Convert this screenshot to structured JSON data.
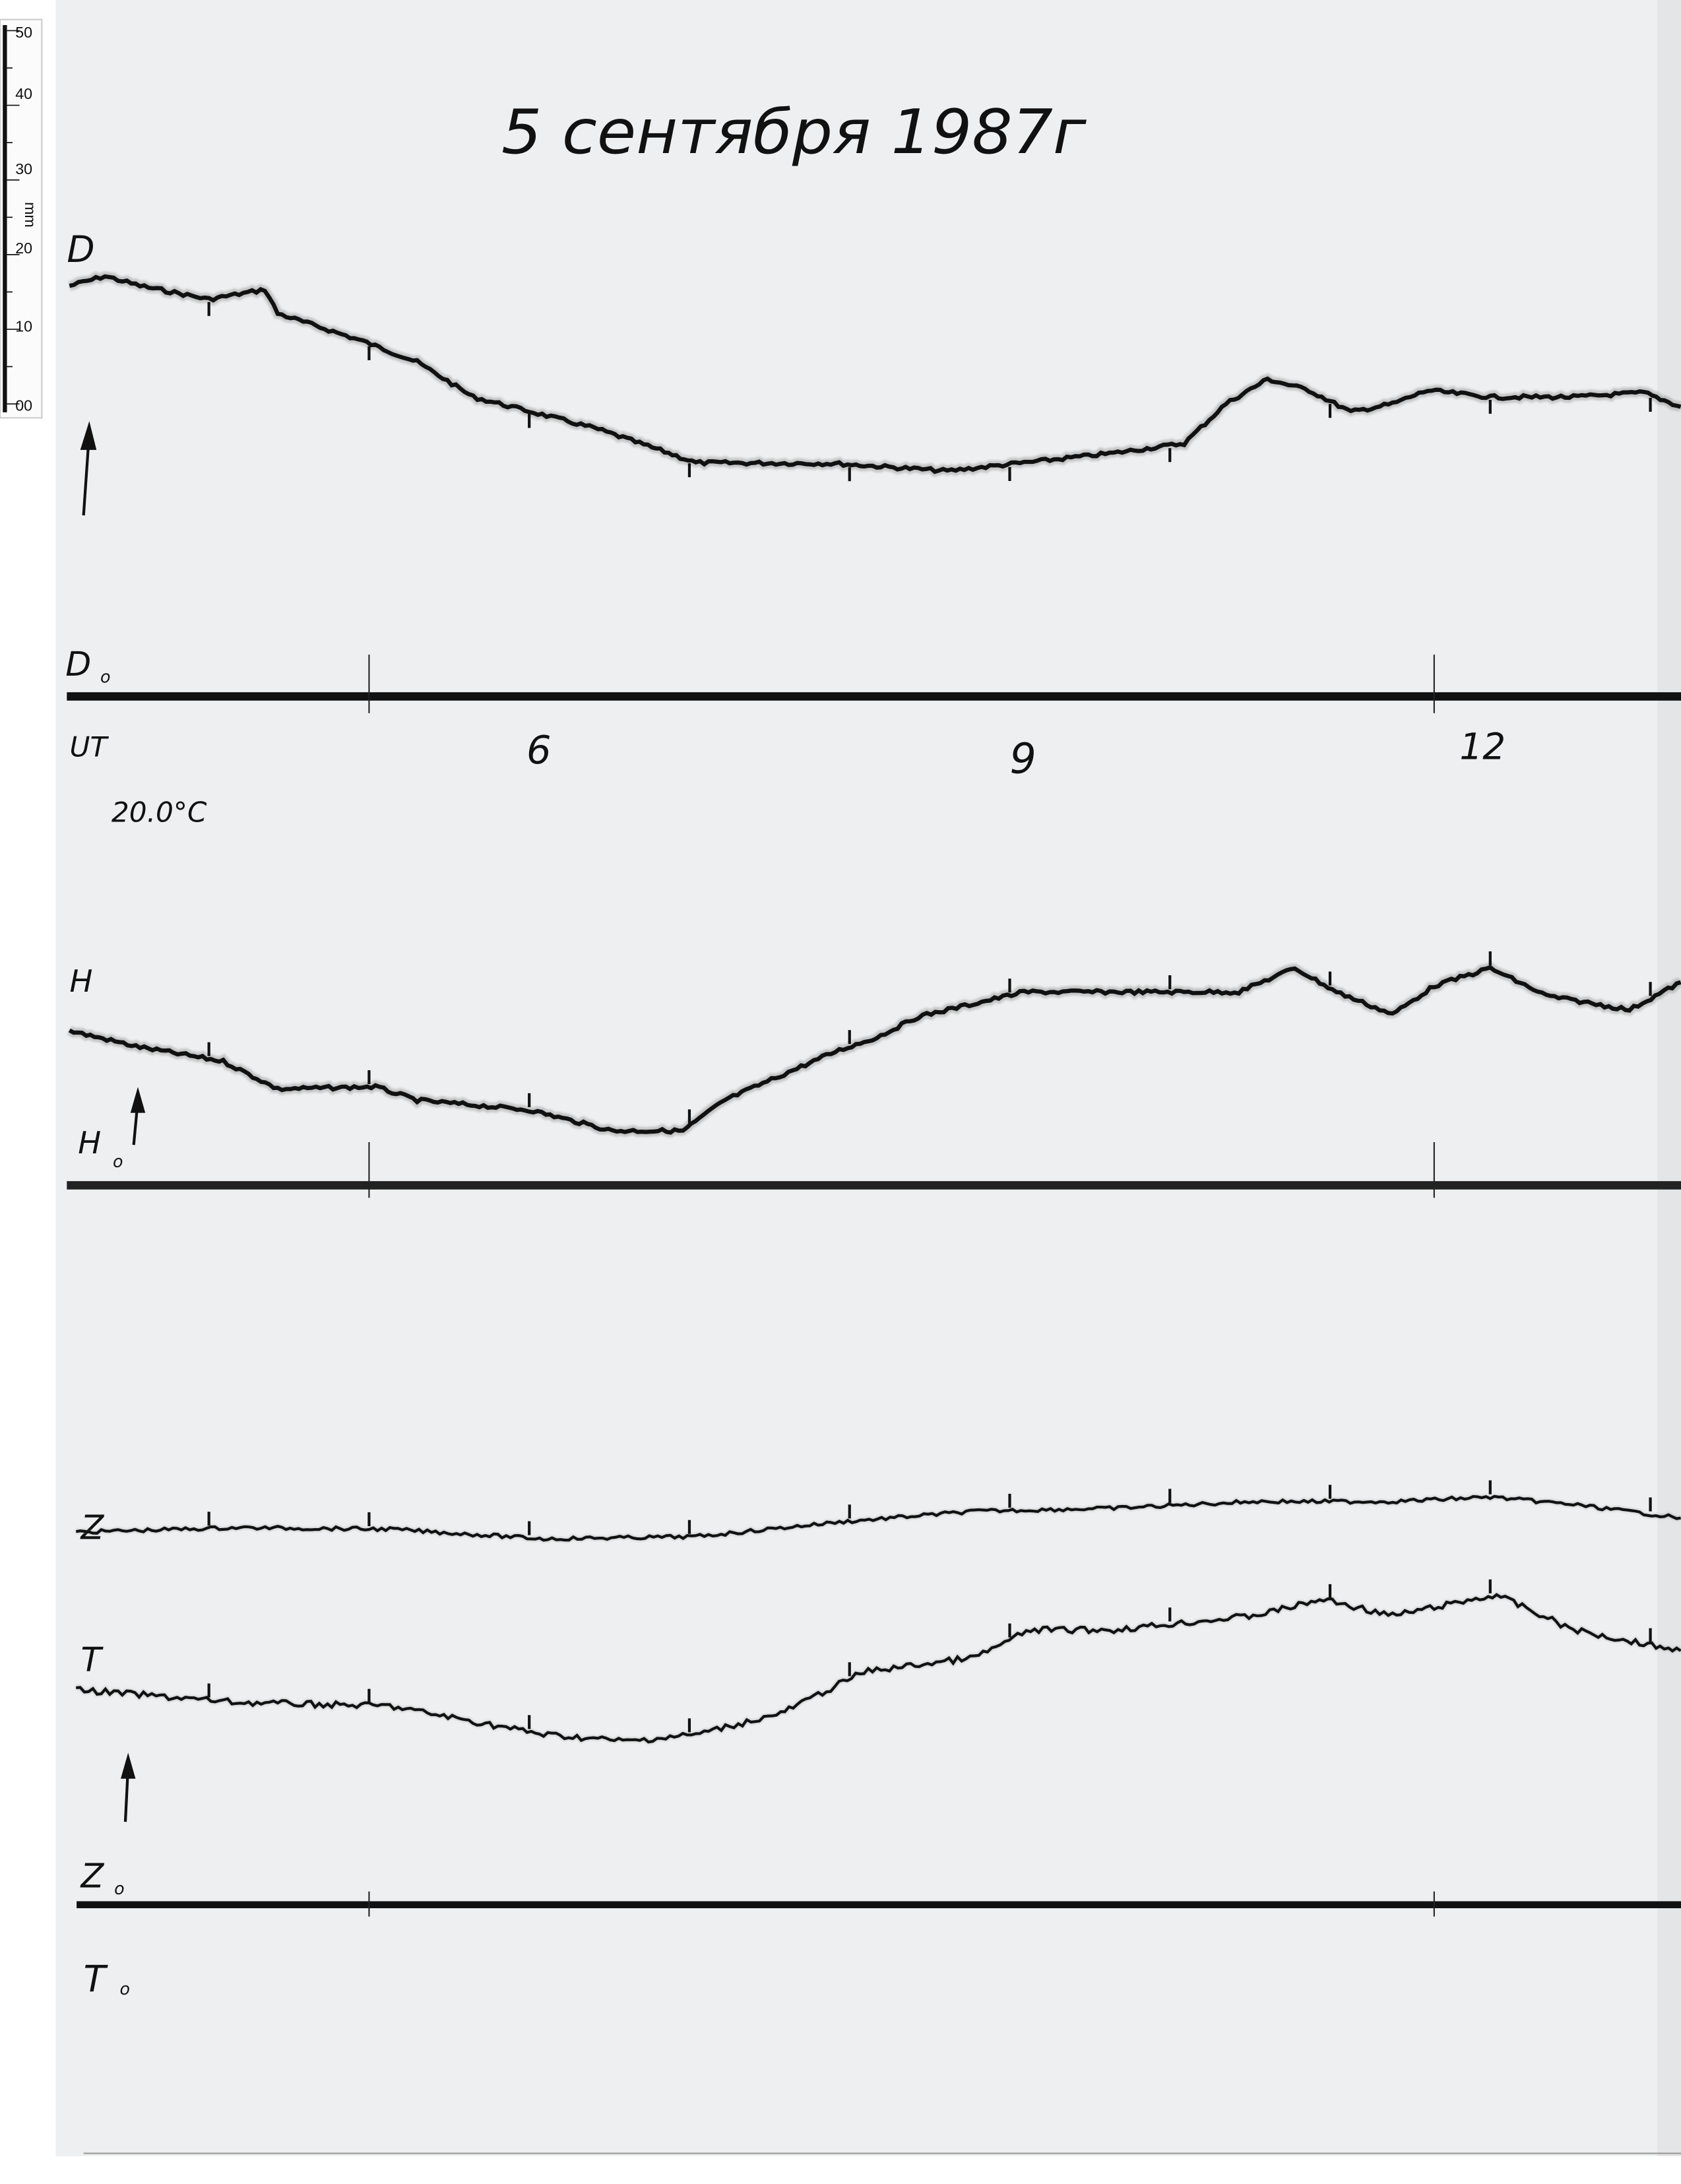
{
  "title": "5 сентября 1987г",
  "ruler": {
    "unit": "mm",
    "ticks": [
      "50",
      "40",
      "30",
      "20",
      "10",
      "00"
    ]
  },
  "labels": {
    "d": "D",
    "d0": "D",
    "d0_sub": "o",
    "ut": "UT",
    "temperature": "20.0°C",
    "h": "H",
    "h0": "H",
    "h0_sub": "o",
    "z": "Z",
    "t": "T",
    "z0": "Z",
    "z0_sub": "o",
    "t0": "T",
    "t0_sub": "o"
  },
  "colors": {
    "paper": "#eeeff0",
    "ink": "#111111"
  },
  "chart_data": {
    "type": "line",
    "title": "5 сентября 1987г",
    "xlabel": "UT",
    "x_tick_labels": [
      "6",
      "9",
      "12"
    ],
    "x_ticks": [
      6,
      9,
      12
    ],
    "xlim": [
      3.1,
      13.2
    ],
    "y_unit": "mm above baseline (ruler scale)",
    "grid": false,
    "hour_marks": true,
    "series": [
      {
        "name": "D",
        "baseline": "D0",
        "x": [
          3.13,
          3.35,
          3.57,
          4.0,
          4.35,
          4.43,
          4.96,
          5.3,
          5.65,
          6.0,
          6.43,
          6.87,
          7.04,
          7.91,
          8.61,
          9.09,
          9.65,
          10.09,
          10.35,
          10.61,
          10.87,
          11.13,
          11.39,
          11.61,
          12.0,
          12.52,
          12.96,
          13.19
        ],
        "y": [
          55.0,
          56.3,
          55.0,
          53.2,
          54.5,
          51.3,
          47.6,
          44.8,
          40.1,
          38.2,
          35.8,
          32.6,
          31.3,
          31.2,
          30.2,
          31.3,
          32.6,
          33.9,
          39.2,
          42.5,
          41.0,
          38.1,
          39.2,
          41.0,
          40.1,
          40.1,
          40.7,
          38.8
        ]
      },
      {
        "name": "H",
        "baseline": "H0",
        "x": [
          3.13,
          3.57,
          4.09,
          4.43,
          5.04,
          5.3,
          6.0,
          6.52,
          6.96,
          7.22,
          7.91,
          8.17,
          8.43,
          9.09,
          9.65,
          10.09,
          10.43,
          10.78,
          11.04,
          11.39,
          11.65,
          12.0,
          12.35,
          12.87,
          13.19
        ],
        "y": [
          20.7,
          18.5,
          16.6,
          12.9,
          13.2,
          11.4,
          10.1,
          7.3,
          7.3,
          11.4,
          17.9,
          19.8,
          22.6,
          25.9,
          25.9,
          25.9,
          25.9,
          29.1,
          25.9,
          22.9,
          26.7,
          29.1,
          25.4,
          23.5,
          27.2
        ]
      },
      {
        "name": "Z",
        "baseline": "Z0",
        "x": [
          3.17,
          4.17,
          5.13,
          6.09,
          7.04,
          7.91,
          8.78,
          9.65,
          10.52,
          11.39,
          12.0,
          12.52,
          13.19
        ],
        "y": [
          50.0,
          50.6,
          50.4,
          49.1,
          49.4,
          51.3,
          52.8,
          53.2,
          54.1,
          54.1,
          54.7,
          53.7,
          51.9
        ]
      },
      {
        "name": "T",
        "baseline": "T0",
        "x": [
          3.17,
          4.17,
          5.13,
          6.09,
          6.61,
          7.04,
          7.57,
          8.09,
          8.78,
          9.13,
          9.65,
          10.52,
          10.96,
          11.39,
          12.04,
          12.52,
          13.19
        ],
        "y": [
          28.9,
          27.2,
          26.7,
          22.9,
          22.0,
          22.9,
          25.7,
          31.3,
          33.2,
          36.9,
          36.9,
          38.8,
          41.0,
          38.8,
          41.6,
          36.9,
          34.1
        ]
      }
    ]
  }
}
